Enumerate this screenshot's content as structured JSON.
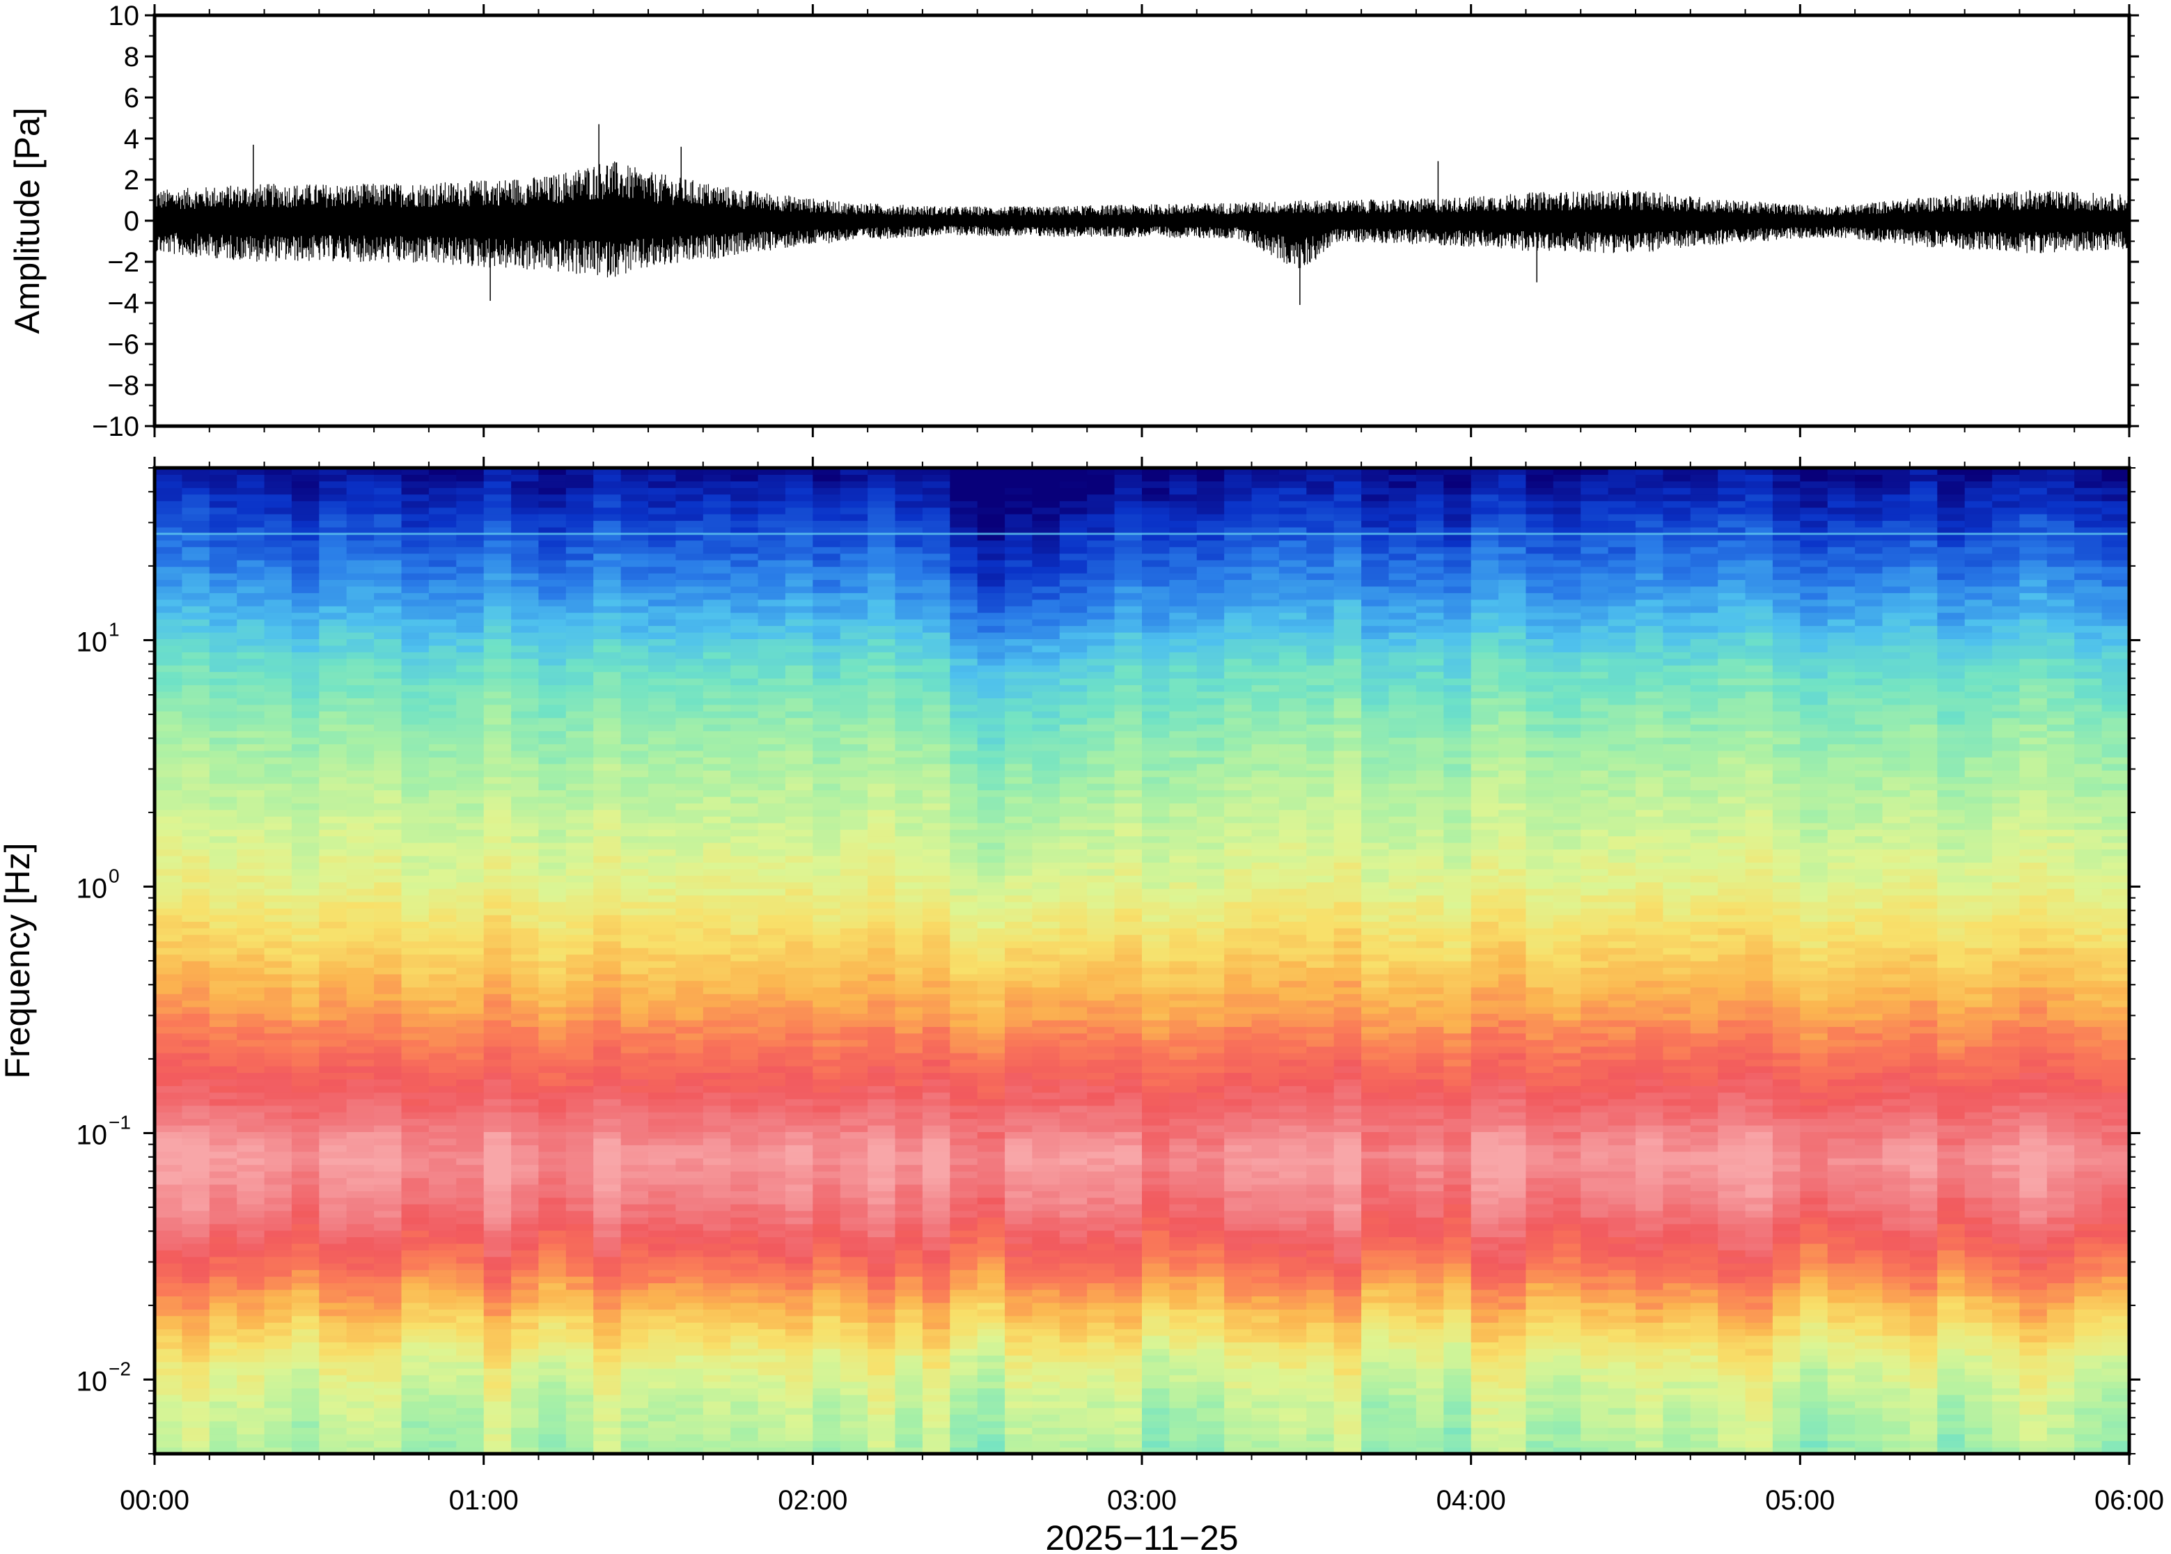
{
  "chart_data": [
    {
      "type": "line",
      "ylabel": "Amplitude [Pa]",
      "ylim": [
        -10,
        10
      ],
      "yticks": [
        10,
        8,
        6,
        4,
        2,
        0,
        -2,
        -4,
        -6,
        -8,
        -10
      ],
      "ytick_labels": [
        "10",
        "8",
        "6",
        "4",
        "2",
        "0",
        "−2",
        "−4",
        "−6",
        "−8",
        "−10"
      ],
      "x_range_hours": [
        0,
        6
      ],
      "series": [
        {
          "x_hours": [
            0.0,
            0.3,
            0.6,
            0.9,
            1.2,
            1.38,
            1.5,
            1.8,
            2.1,
            2.4,
            2.7,
            3.0,
            3.3,
            3.48,
            3.6,
            3.9,
            4.2,
            4.5,
            4.8,
            5.1,
            5.4,
            5.7,
            6.0
          ],
          "envelope_upper": [
            1.5,
            1.8,
            1.8,
            1.9,
            2.2,
            3.0,
            2.4,
            1.5,
            0.9,
            0.7,
            0.7,
            0.8,
            0.9,
            1.0,
            1.0,
            1.1,
            1.4,
            1.5,
            1.0,
            0.7,
            1.2,
            1.5,
            1.3
          ],
          "envelope_lower": [
            -1.6,
            -2.0,
            -2.0,
            -2.2,
            -2.5,
            -2.8,
            -2.4,
            -1.6,
            -1.0,
            -0.7,
            -0.8,
            -0.8,
            -0.9,
            -2.5,
            -1.0,
            -1.2,
            -1.5,
            -1.6,
            -1.1,
            -0.8,
            -1.3,
            -1.6,
            -1.4
          ],
          "spikes": [
            {
              "x_hours": 0.3,
              "y": 3.7
            },
            {
              "x_hours": 1.02,
              "y": -3.9
            },
            {
              "x_hours": 1.35,
              "y": 4.7
            },
            {
              "x_hours": 1.6,
              "y": 3.6
            },
            {
              "x_hours": 3.48,
              "y": -4.1
            },
            {
              "x_hours": 3.9,
              "y": 2.9
            },
            {
              "x_hours": 4.2,
              "y": -3.0
            }
          ]
        }
      ]
    },
    {
      "type": "heatmap",
      "xlabel": "2025−11−25",
      "ylabel": "Frequency [Hz]",
      "yscale": "log",
      "ylim": [
        0.005,
        50
      ],
      "yticks": [
        0.01,
        0.1,
        1,
        10
      ],
      "ytick_labels": [
        {
          "base": "10",
          "exp": "−2"
        },
        {
          "base": "10",
          "exp": "−1"
        },
        {
          "base": "10",
          "exp": "0"
        },
        {
          "base": "10",
          "exp": "1"
        }
      ],
      "x_range_hours": [
        0,
        6
      ],
      "xticks": [
        "00:00",
        "01:00",
        "02:00",
        "03:00",
        "04:00",
        "05:00",
        "06:00"
      ],
      "colormap": [
        "#08007a",
        "#0a33c8",
        "#2a7de8",
        "#4ec0ee",
        "#6fe2c6",
        "#a8f0a6",
        "#ddf593",
        "#f8e06a",
        "#fbb550",
        "#fa7a58",
        "#f25a5e",
        "#f27f84",
        "#f8a6a8"
      ],
      "profile_freq_hz": [
        0.005,
        0.008,
        0.012,
        0.02,
        0.03,
        0.05,
        0.08,
        0.12,
        0.2,
        0.3,
        0.5,
        1,
        2,
        4,
        8,
        12,
        20,
        30,
        50
      ],
      "profile_level": [
        0.42,
        0.46,
        0.52,
        0.66,
        0.78,
        0.9,
        0.97,
        0.88,
        0.78,
        0.7,
        0.62,
        0.52,
        0.46,
        0.4,
        0.32,
        0.24,
        0.16,
        0.1,
        0.02
      ],
      "quiet_interval_hours": [
        2.3,
        3.0
      ],
      "spectral_line_hz": 27
    }
  ]
}
